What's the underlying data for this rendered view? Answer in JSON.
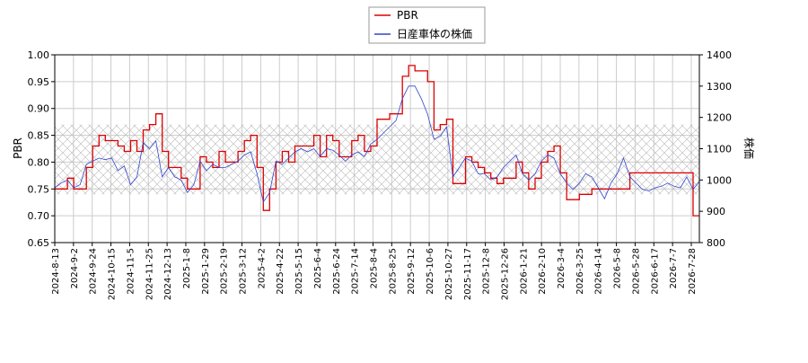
{
  "chart_data": {
    "type": "line",
    "legend": {
      "placement": "top-center",
      "entries": [
        {
          "label": "PBR",
          "color": "#dd0000"
        },
        {
          "label": "日産車体の株価",
          "color": "#3344cc"
        }
      ]
    },
    "y_left": {
      "label": "PBR",
      "range": [
        0.65,
        1.0
      ],
      "ticks": [
        "0.65",
        "0.70",
        "0.75",
        "0.80",
        "0.85",
        "0.90",
        "0.95",
        "1.00"
      ]
    },
    "y_right": {
      "label": "株価",
      "range": [
        800,
        1400
      ],
      "ticks": [
        "800",
        "900",
        "1000",
        "1100",
        "1200",
        "1300",
        "1400"
      ]
    },
    "x_ticks": [
      "2024-8-13",
      "2024-9-2",
      "2024-9-24",
      "2024-10-15",
      "2024-11-5",
      "2024-11-25",
      "2024-12-13",
      "2025-1-8",
      "2025-1-29",
      "2025-2-19",
      "2025-3-12",
      "2025-4-2",
      "2025-4-22",
      "2025-5-15",
      "2025-6-4",
      "2025-6-24",
      "2025-7-14",
      "2025-8-4",
      "2025-8-25",
      "2025-9-12",
      "2025-10-6",
      "2025-10-27",
      "2025-11-17",
      "2025-12-8",
      "2025-12-26",
      "2026-1-21",
      "2026-2-10",
      "2026-3-4",
      "2026-3-25",
      "2026-4-14",
      "2026-5-8",
      "2026-5-28",
      "2026-6-17",
      "2026-7-7",
      "2026-7-28"
    ],
    "grid": true,
    "band": {
      "axis": "left",
      "range": [
        0.74,
        0.87
      ],
      "style": "cross-hatch"
    },
    "series": [
      {
        "name": "PBR",
        "axis": "left",
        "color": "#dd0000",
        "step": true,
        "points": [
          [
            0,
            0.75
          ],
          [
            1,
            0.75
          ],
          [
            2,
            0.77
          ],
          [
            3,
            0.75
          ],
          [
            4,
            0.75
          ],
          [
            5,
            0.79
          ],
          [
            6,
            0.83
          ],
          [
            7,
            0.85
          ],
          [
            8,
            0.84
          ],
          [
            9,
            0.84
          ],
          [
            10,
            0.83
          ],
          [
            11,
            0.82
          ],
          [
            12,
            0.84
          ],
          [
            13,
            0.82
          ],
          [
            14,
            0.86
          ],
          [
            15,
            0.87
          ],
          [
            16,
            0.89
          ],
          [
            17,
            0.82
          ],
          [
            18,
            0.79
          ],
          [
            19,
            0.79
          ],
          [
            20,
            0.77
          ],
          [
            21,
            0.75
          ],
          [
            22,
            0.75
          ],
          [
            23,
            0.81
          ],
          [
            24,
            0.8
          ],
          [
            25,
            0.79
          ],
          [
            26,
            0.82
          ],
          [
            27,
            0.8
          ],
          [
            28,
            0.8
          ],
          [
            29,
            0.82
          ],
          [
            30,
            0.84
          ],
          [
            31,
            0.85
          ],
          [
            32,
            0.79
          ],
          [
            33,
            0.71
          ],
          [
            34,
            0.75
          ],
          [
            35,
            0.8
          ],
          [
            36,
            0.82
          ],
          [
            37,
            0.8
          ],
          [
            38,
            0.83
          ],
          [
            39,
            0.83
          ],
          [
            40,
            0.83
          ],
          [
            41,
            0.85
          ],
          [
            42,
            0.81
          ],
          [
            43,
            0.85
          ],
          [
            44,
            0.84
          ],
          [
            45,
            0.81
          ],
          [
            46,
            0.81
          ],
          [
            47,
            0.84
          ],
          [
            48,
            0.85
          ],
          [
            49,
            0.82
          ],
          [
            50,
            0.83
          ],
          [
            51,
            0.88
          ],
          [
            52,
            0.88
          ],
          [
            53,
            0.89
          ],
          [
            54,
            0.89
          ],
          [
            55,
            0.96
          ],
          [
            56,
            0.98
          ],
          [
            57,
            0.97
          ],
          [
            58,
            0.97
          ],
          [
            59,
            0.95
          ],
          [
            60,
            0.86
          ],
          [
            61,
            0.87
          ],
          [
            62,
            0.88
          ],
          [
            63,
            0.76
          ],
          [
            64,
            0.76
          ],
          [
            65,
            0.81
          ],
          [
            66,
            0.8
          ],
          [
            67,
            0.79
          ],
          [
            68,
            0.78
          ],
          [
            69,
            0.77
          ],
          [
            70,
            0.76
          ],
          [
            71,
            0.77
          ],
          [
            72,
            0.77
          ],
          [
            73,
            0.8
          ],
          [
            74,
            0.78
          ],
          [
            75,
            0.75
          ],
          [
            76,
            0.77
          ],
          [
            77,
            0.8
          ],
          [
            78,
            0.82
          ],
          [
            79,
            0.83
          ],
          [
            80,
            0.78
          ],
          [
            81,
            0.73
          ],
          [
            82,
            0.73
          ],
          [
            83,
            0.74
          ],
          [
            84,
            0.74
          ],
          [
            85,
            0.75
          ],
          [
            86,
            0.75
          ],
          [
            87,
            0.75
          ],
          [
            88,
            0.75
          ],
          [
            89,
            0.75
          ],
          [
            90,
            0.75
          ],
          [
            91,
            0.78
          ],
          [
            92,
            0.78
          ],
          [
            93,
            0.78
          ],
          [
            94,
            0.78
          ],
          [
            95,
            0.78
          ],
          [
            96,
            0.78
          ],
          [
            97,
            0.78
          ],
          [
            98,
            0.78
          ],
          [
            99,
            0.78
          ],
          [
            100,
            0.78
          ],
          [
            101,
            0.7
          ],
          [
            102,
            0.7
          ]
        ]
      },
      {
        "name": "日産車体の株価",
        "axis": "right",
        "color": "#3344cc",
        "step": false,
        "points": [
          [
            0,
            975
          ],
          [
            1,
            990
          ],
          [
            2,
            1000
          ],
          [
            3,
            975
          ],
          [
            4,
            985
          ],
          [
            5,
            1050
          ],
          [
            6,
            1060
          ],
          [
            7,
            1070
          ],
          [
            8,
            1065
          ],
          [
            9,
            1070
          ],
          [
            10,
            1030
          ],
          [
            11,
            1045
          ],
          [
            12,
            985
          ],
          [
            13,
            1010
          ],
          [
            14,
            1120
          ],
          [
            15,
            1100
          ],
          [
            16,
            1125
          ],
          [
            17,
            1010
          ],
          [
            18,
            1040
          ],
          [
            19,
            1010
          ],
          [
            20,
            1000
          ],
          [
            21,
            960
          ],
          [
            22,
            985
          ],
          [
            23,
            1060
          ],
          [
            24,
            1030
          ],
          [
            25,
            1050
          ],
          [
            26,
            1040
          ],
          [
            27,
            1040
          ],
          [
            28,
            1050
          ],
          [
            29,
            1060
          ],
          [
            30,
            1080
          ],
          [
            31,
            1090
          ],
          [
            32,
            1020
          ],
          [
            33,
            930
          ],
          [
            34,
            960
          ],
          [
            35,
            1060
          ],
          [
            36,
            1050
          ],
          [
            37,
            1070
          ],
          [
            38,
            1090
          ],
          [
            39,
            1100
          ],
          [
            40,
            1090
          ],
          [
            41,
            1100
          ],
          [
            42,
            1075
          ],
          [
            43,
            1100
          ],
          [
            44,
            1095
          ],
          [
            45,
            1080
          ],
          [
            46,
            1060
          ],
          [
            47,
            1080
          ],
          [
            48,
            1090
          ],
          [
            49,
            1075
          ],
          [
            50,
            1115
          ],
          [
            51,
            1130
          ],
          [
            52,
            1150
          ],
          [
            53,
            1170
          ],
          [
            54,
            1190
          ],
          [
            55,
            1260
          ],
          [
            56,
            1300
          ],
          [
            57,
            1300
          ],
          [
            58,
            1260
          ],
          [
            59,
            1210
          ],
          [
            60,
            1130
          ],
          [
            61,
            1140
          ],
          [
            62,
            1170
          ],
          [
            63,
            1010
          ],
          [
            64,
            1040
          ],
          [
            65,
            1070
          ],
          [
            66,
            1060
          ],
          [
            67,
            1020
          ],
          [
            68,
            1020
          ],
          [
            69,
            1000
          ],
          [
            70,
            1010
          ],
          [
            71,
            1040
          ],
          [
            72,
            1060
          ],
          [
            73,
            1080
          ],
          [
            74,
            1020
          ],
          [
            75,
            1000
          ],
          [
            76,
            1020
          ],
          [
            77,
            1060
          ],
          [
            78,
            1080
          ],
          [
            79,
            1070
          ],
          [
            80,
            1020
          ],
          [
            81,
            990
          ],
          [
            82,
            970
          ],
          [
            83,
            990
          ],
          [
            84,
            1020
          ],
          [
            85,
            1010
          ],
          [
            86,
            975
          ],
          [
            87,
            940
          ],
          [
            88,
            990
          ],
          [
            89,
            1020
          ],
          [
            90,
            1070
          ],
          [
            91,
            1010
          ],
          [
            92,
            990
          ],
          [
            93,
            970
          ],
          [
            94,
            965
          ],
          [
            95,
            975
          ],
          [
            96,
            980
          ],
          [
            97,
            990
          ],
          [
            98,
            980
          ],
          [
            99,
            975
          ],
          [
            100,
            1010
          ],
          [
            101,
            970
          ],
          [
            102,
            995
          ]
        ]
      }
    ]
  }
}
